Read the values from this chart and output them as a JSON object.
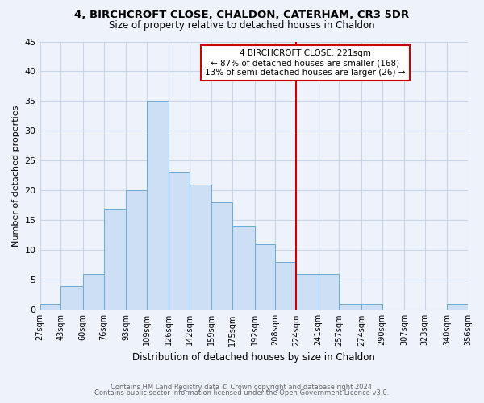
{
  "title": "4, BIRCHCROFT CLOSE, CHALDON, CATERHAM, CR3 5DR",
  "subtitle": "Size of property relative to detached houses in Chaldon",
  "xlabel": "Distribution of detached houses by size in Chaldon",
  "ylabel": "Number of detached properties",
  "bin_labels": [
    "27sqm",
    "43sqm",
    "60sqm",
    "76sqm",
    "93sqm",
    "109sqm",
    "126sqm",
    "142sqm",
    "159sqm",
    "175sqm",
    "192sqm",
    "208sqm",
    "224sqm",
    "241sqm",
    "257sqm",
    "274sqm",
    "290sqm",
    "307sqm",
    "323sqm",
    "340sqm",
    "356sqm"
  ],
  "bin_edges": [
    27,
    43,
    60,
    76,
    93,
    109,
    126,
    142,
    159,
    175,
    192,
    208,
    224,
    241,
    257,
    274,
    290,
    307,
    323,
    340,
    356
  ],
  "counts": [
    1,
    4,
    6,
    17,
    20,
    35,
    23,
    21,
    18,
    14,
    11,
    8,
    6,
    6,
    1,
    1,
    0,
    0,
    0,
    1,
    0
  ],
  "bar_color": "#ccdff5",
  "bar_edge_color": "#6aaad4",
  "grid_color": "#c8d4e8",
  "vline_x": 224,
  "vline_color": "#cc0000",
  "annotation_title": "4 BIRCHCROFT CLOSE: 221sqm",
  "annotation_line1": "← 87% of detached houses are smaller (168)",
  "annotation_line2": "13% of semi-detached houses are larger (26) →",
  "annotation_box_color": "#ffffff",
  "annotation_border_color": "#cc0000",
  "ylim": [
    0,
    45
  ],
  "footnote1": "Contains HM Land Registry data © Crown copyright and database right 2024.",
  "footnote2": "Contains public sector information licensed under the Open Government Licence v3.0.",
  "background_color": "#eef2fb"
}
